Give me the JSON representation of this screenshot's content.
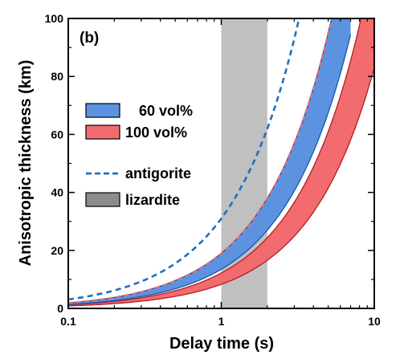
{
  "chart_data": {
    "type": "area",
    "panel_label": "(b)",
    "xlabel": "Delay time (s)",
    "ylabel": "Anisotropic thickness (km)",
    "xscale": "log",
    "xlim": [
      0.1,
      10
    ],
    "ylim": [
      0,
      100
    ],
    "xticks": [
      {
        "value": 0.1,
        "label": "0.1"
      },
      {
        "value": 1,
        "label": "1"
      },
      {
        "value": 10,
        "label": "10"
      }
    ],
    "yticks": [
      {
        "value": 0,
        "label": "0"
      },
      {
        "value": 20,
        "label": "20"
      },
      {
        "value": 40,
        "label": "40"
      },
      {
        "value": 60,
        "label": "60"
      },
      {
        "value": 80,
        "label": "80"
      },
      {
        "value": 100,
        "label": "100"
      }
    ],
    "shaded_region": {
      "name": "lizardite",
      "x": [
        1,
        2
      ],
      "color": "#c0c0c0"
    },
    "series": [
      {
        "name": "60 vol%",
        "kind": "band",
        "fill": "#5b93e0",
        "edge": "#1a55b0",
        "x": [
          0.1,
          0.2,
          0.5,
          1,
          2,
          3,
          4,
          5,
          6,
          7
        ],
        "upper": [
          1.9,
          3.8,
          9.6,
          19,
          38,
          57,
          76,
          95,
          114,
          133
        ],
        "lower": [
          1.35,
          2.7,
          6.75,
          13.5,
          27,
          40.5,
          54,
          67.5,
          81,
          94.5
        ]
      },
      {
        "name": "100 vol%",
        "kind": "band",
        "fill": "#f26b6e",
        "edge": "#b01e25",
        "x": [
          0.1,
          0.2,
          0.5,
          1,
          2,
          3,
          4,
          5,
          6,
          8,
          10
        ],
        "upper": [
          1.22,
          2.44,
          6.1,
          12.2,
          24.4,
          36.6,
          48.8,
          61,
          73.2,
          97.6,
          122
        ],
        "lower": [
          0.83,
          1.66,
          4.15,
          8.3,
          16.6,
          24.9,
          33.2,
          41.5,
          49.8,
          66.4,
          83
        ]
      },
      {
        "name": "antigorite",
        "kind": "dashed-line",
        "color": "#1f6fc0",
        "x": [
          0.1,
          0.2,
          0.5,
          1,
          2,
          3,
          3.2
        ],
        "y": [
          3.1,
          6.2,
          15.5,
          31,
          62,
          93,
          99.2
        ]
      }
    ],
    "legend": {
      "placement": "left-middle",
      "items": [
        {
          "label": "60 vol%",
          "swatch": "box",
          "color": "#5b93e0"
        },
        {
          "label": "100 vol%",
          "swatch": "box",
          "color": "#f26b6e"
        },
        {
          "label": "antigorite",
          "swatch": "dashed-line",
          "color": "#1f6fc0"
        },
        {
          "label": "lizardite",
          "swatch": "box",
          "color": "#8c8c8c"
        }
      ]
    },
    "grid": false
  }
}
